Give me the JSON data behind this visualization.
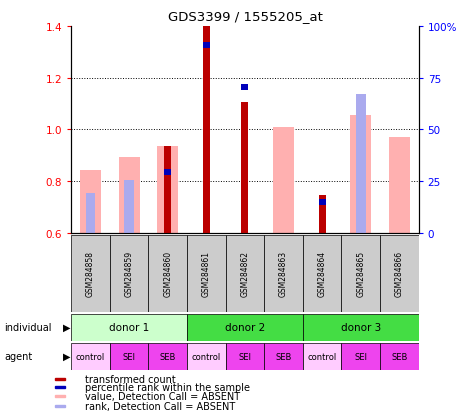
{
  "title": "GDS3399 / 1555205_at",
  "samples": [
    "GSM284858",
    "GSM284859",
    "GSM284860",
    "GSM284861",
    "GSM284862",
    "GSM284863",
    "GSM284864",
    "GSM284865",
    "GSM284866"
  ],
  "red_values": [
    null,
    null,
    0.935,
    1.4,
    1.105,
    null,
    0.745,
    null,
    null
  ],
  "pink_values": [
    0.845,
    0.895,
    0.935,
    null,
    null,
    1.01,
    null,
    1.055,
    0.97
  ],
  "blue_values": [
    null,
    null,
    0.835,
    1.325,
    1.165,
    null,
    0.72,
    null,
    null
  ],
  "lightblue_values": [
    0.755,
    0.805,
    null,
    null,
    null,
    null,
    null,
    1.135,
    null
  ],
  "ylim": [
    0.6,
    1.4
  ],
  "yticks_left": [
    0.6,
    0.8,
    1.0,
    1.2,
    1.4
  ],
  "ytick_labels_left": [
    "0.6",
    "0.8",
    "1.0",
    "1.2",
    "1.4"
  ],
  "yticks_right_vals": [
    0.6,
    0.8,
    1.0,
    1.2,
    1.4
  ],
  "ytick_labels_right": [
    "0",
    "25",
    "50",
    "75",
    "100%"
  ],
  "donors": [
    {
      "label": "donor 1",
      "start": 0,
      "end": 3,
      "color": "#ccffcc"
    },
    {
      "label": "donor 2",
      "start": 3,
      "end": 6,
      "color": "#44dd44"
    },
    {
      "label": "donor 3",
      "start": 6,
      "end": 9,
      "color": "#44dd44"
    }
  ],
  "agents": [
    "control",
    "SEI",
    "SEB",
    "control",
    "SEI",
    "SEB",
    "control",
    "SEI",
    "SEB"
  ],
  "agent_colors": [
    "#ffaaff",
    "#ff55ff",
    "#ff55ff",
    "#ffaaff",
    "#ff55ff",
    "#ff55ff",
    "#ffaaff",
    "#ff55ff",
    "#ff55ff"
  ],
  "red_color": "#bb0000",
  "pink_color": "#ffb0b0",
  "blue_color": "#0000bb",
  "lightblue_color": "#aaaaee",
  "grey_color": "#cccccc",
  "legend_items": [
    {
      "color": "#bb0000",
      "label": "transformed count"
    },
    {
      "color": "#0000bb",
      "label": "percentile rank within the sample"
    },
    {
      "color": "#ffb0b0",
      "label": "value, Detection Call = ABSENT"
    },
    {
      "color": "#aaaaee",
      "label": "rank, Detection Call = ABSENT"
    }
  ]
}
